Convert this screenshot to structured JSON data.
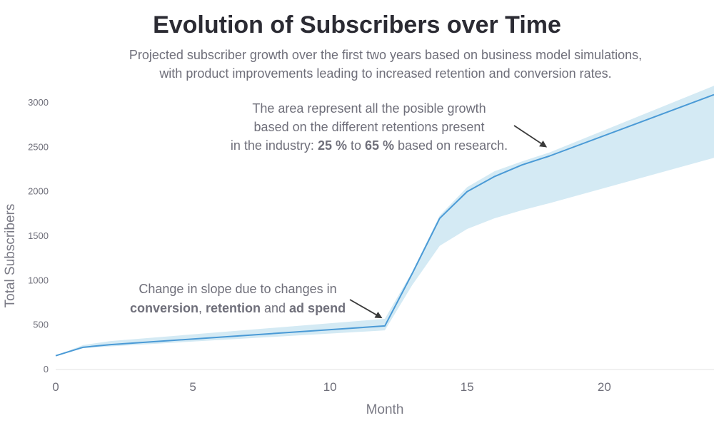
{
  "title": "Evolution of Subscribers over Time",
  "subtitle": [
    "Projected subscriber growth over the first two years based on business model simulations,",
    "with product improvements leading to increased retention and conversion rates."
  ],
  "chart_data": {
    "type": "line",
    "title": "Evolution of Subscribers over Time",
    "xlabel": "Month",
    "ylabel": "Total Subscribers",
    "xlim": [
      0,
      24
    ],
    "ylim": [
      0,
      3200
    ],
    "x_ticks": [
      0,
      5,
      10,
      15,
      20
    ],
    "y_ticks": [
      0,
      500,
      1000,
      1500,
      2000,
      2500,
      3000
    ],
    "grid": false,
    "x": [
      0,
      1,
      2,
      12,
      13,
      14,
      15,
      16,
      17,
      18,
      24
    ],
    "series": [
      {
        "values": [
          155,
          250,
          280,
          490,
          1080,
          1700,
          2000,
          2170,
          2300,
          2400,
          3090
        ]
      }
    ],
    "band": {
      "x": [
        0,
        1,
        2,
        12,
        13,
        14,
        15,
        16,
        17,
        18,
        24
      ],
      "upper": [
        155,
        275,
        320,
        570,
        1100,
        1730,
        2050,
        2230,
        2340,
        2440,
        3190
      ],
      "lower": [
        155,
        240,
        260,
        440,
        950,
        1390,
        1580,
        1700,
        1790,
        1870,
        2380
      ]
    },
    "colors": {
      "line": "#4a9ad6",
      "band": "#d4eaf4",
      "text": "#6f6f7a",
      "arrow": "#3a3a3a"
    },
    "annotations": [
      {
        "id": "area-note",
        "x": 18,
        "y": 2480,
        "lines": [
          [
            {
              "text": "The area represent all the posible growth"
            }
          ],
          [
            {
              "text": "based on the different retentions present"
            }
          ],
          [
            {
              "text": "in the industry: "
            },
            {
              "text": "25 %",
              "bold": true
            },
            {
              "text": " to "
            },
            {
              "text": "65 %",
              "bold": true
            },
            {
              "text": " based on research."
            }
          ]
        ]
      },
      {
        "id": "slope-note",
        "x": 12,
        "y": 560,
        "lines": [
          [
            {
              "text": "Change in slope due to changes in"
            }
          ],
          [
            {
              "text": "conversion",
              "bold": true
            },
            {
              "text": ", "
            },
            {
              "text": "retention",
              "bold": true
            },
            {
              "text": " and "
            },
            {
              "text": "ad spend",
              "bold": true
            }
          ]
        ]
      }
    ]
  }
}
